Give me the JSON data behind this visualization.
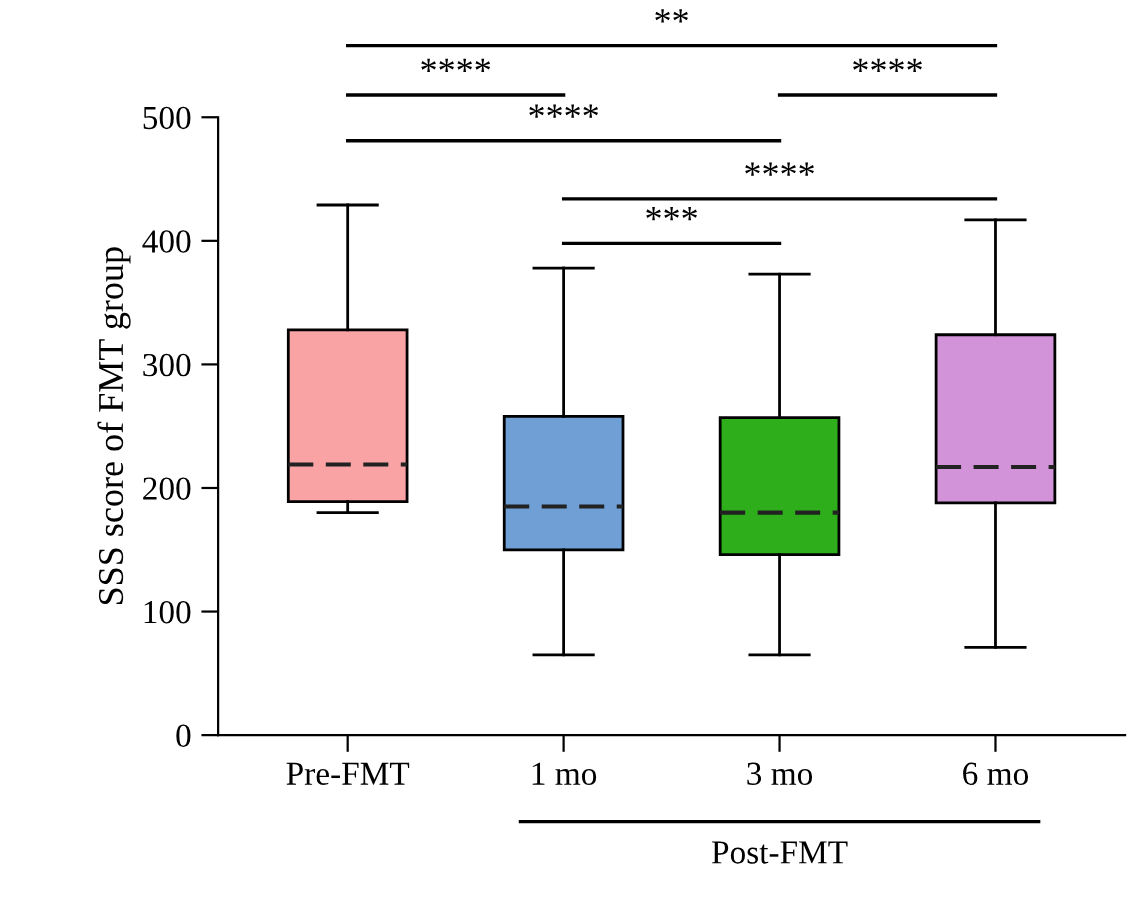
{
  "chart_data": {
    "type": "box",
    "ylabel": "SSS score of FMT group",
    "categories": [
      "Pre-FMT",
      "1 mo",
      "3 mo",
      "6 mo"
    ],
    "colors": [
      "#f9a3a4",
      "#6f9fd4",
      "#2fae1c",
      "#d293d9"
    ],
    "boxes": [
      {
        "low": 180,
        "q1": 189,
        "median": 219,
        "q3": 328,
        "high": 429
      },
      {
        "low": 65,
        "q1": 150,
        "median": 185,
        "q3": 258,
        "high": 378
      },
      {
        "low": 65,
        "q1": 146,
        "median": 180,
        "q3": 257,
        "high": 373
      },
      {
        "low": 71,
        "q1": 188,
        "median": 217,
        "q3": 324,
        "high": 417
      }
    ],
    "ylim": [
      0,
      500
    ],
    "yticks": [
      0,
      100,
      200,
      300,
      400,
      500
    ],
    "grid": false,
    "annotations": [
      "**",
      "****",
      "****",
      "****",
      "****",
      "***",
      "Post-FMT"
    ]
  }
}
